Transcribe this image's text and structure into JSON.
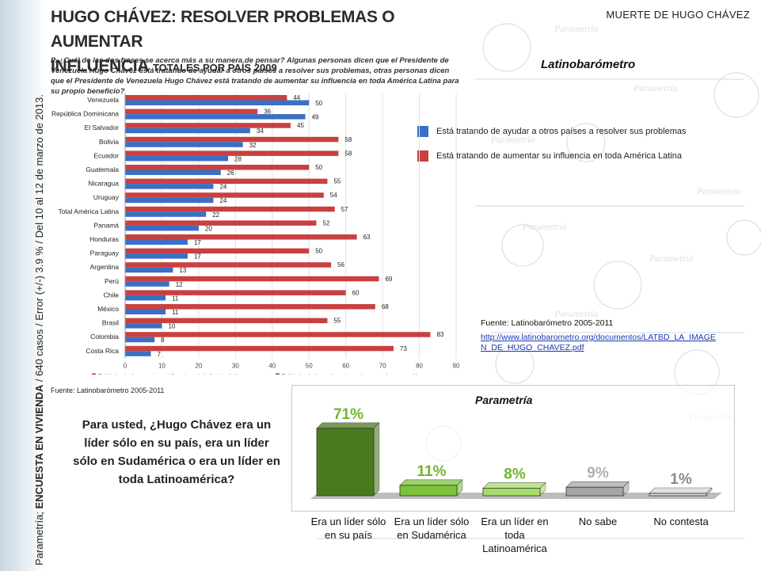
{
  "side_text": {
    "prefix": "Parametría; ",
    "bold": "ENCUESTA EN VIVIENDA",
    "rest": " / 640 casos / Error (+/-) 3.9 % / Del 10 al 12 de marzo de 2013."
  },
  "header": {
    "title_line1": "HUGO CHÁVEZ: RESOLVER PROBLEMAS O AUMENTAR",
    "title_line2": "INFLUENCIA",
    "title_sub": "TOTALES POR PAÍS 2009",
    "top_right": "MUERTE DE HUGO CHÁVEZ"
  },
  "question": "P. ¿Cuál de las dos frases se acerca más a su manera de pensar? Algunas personas dicen que el Presidente de Venezuela Hugo Chávez está tratando de ayudar a otros países a resolver sus problemas, otras personas dicen que el Presidente de Venezuela Hugo Chávez está tratando de aumentar su influencia en toda América Latina para su propio beneficio?",
  "latinobarometro": {
    "title": "Latinobarómetro",
    "legend_blue": "Está tratando de ayudar a otros países a resolver sus problemas",
    "legend_red": "Está tratando de aumentar su influencia en toda América Latina",
    "source": "Fuente: Latinobarómetro 2005-2011",
    "link": "http://www.latinobarometro.org/documentos/LATBD_LA_IMAGEN_DE_HUGO_CHAVEZ.pdf",
    "fuente_small": "Fuente: Latinobarómetro 2005-2011"
  },
  "parametria": {
    "title": "Parametría",
    "question": "Para usted, ¿Hugo Chávez era un líder sólo en su país, era un líder sólo en Sudamérica o era un líder en toda Latinoamérica?"
  },
  "colors": {
    "red": "#c94040",
    "blue": "#3b6fc4",
    "dark_green": "#4a7a1e",
    "mid_green": "#7cc23a",
    "light_green": "#a8dc6a",
    "gray": "#a6a6a6",
    "light_gray": "#d9d9d9"
  },
  "chart_data": [
    {
      "type": "bar",
      "orientation": "horizontal",
      "categories": [
        "Venezuela",
        "República Dominicana",
        "El Salvador",
        "Bolivia",
        "Ecuador",
        "Guatemala",
        "Nicaragua",
        "Uruguay",
        "Total América Latina",
        "Panamá",
        "Honduras",
        "Paraguay",
        "Argentina",
        "Perú",
        "Chile",
        "México",
        "Brasil",
        "Colombia",
        "Costa Rica"
      ],
      "series": [
        {
          "name": "Está tratando de aumentar su influencia en toda América Latina",
          "color": "#c94040",
          "values": [
            44,
            36,
            45,
            58,
            58,
            50,
            55,
            54,
            57,
            52,
            63,
            50,
            56,
            69,
            60,
            68,
            55,
            83,
            73
          ]
        },
        {
          "name": "Está tratando de ayudar a otros países a resolver sus problemas",
          "color": "#3b6fc4",
          "values": [
            50,
            49,
            34,
            32,
            28,
            26,
            24,
            24,
            22,
            20,
            17,
            17,
            13,
            12,
            11,
            11,
            10,
            8,
            7
          ]
        }
      ],
      "xlim": [
        0,
        90
      ],
      "xticks": [
        0,
        10,
        20,
        30,
        40,
        50,
        60,
        70,
        80,
        90
      ],
      "legend_bottom": [
        "Está tratando de aumentar su influencia en toda América Latina",
        "Está tratando de ayudar a otros países a resolver sus problemas"
      ]
    },
    {
      "type": "bar",
      "title": "Parametría",
      "categories": [
        "Era un líder sólo en su país",
        "Era un líder sólo en Sudamérica",
        "Era un líder en toda Latinoamérica",
        "No sabe",
        "No contesta"
      ],
      "values": [
        71,
        11,
        8,
        9,
        1
      ],
      "labels": [
        "71%",
        "11%",
        "8%",
        "9%",
        "1%"
      ],
      "colors": [
        "#4a7a1e",
        "#7cc23a",
        "#a8dc6a",
        "#a6a6a6",
        "#d9d9d9"
      ],
      "label_colors": [
        "#6fb52c",
        "#6fb52c",
        "#6fb52c",
        "#b0b0b0",
        "#8a8a8a"
      ],
      "ylim": [
        0,
        100
      ]
    }
  ]
}
